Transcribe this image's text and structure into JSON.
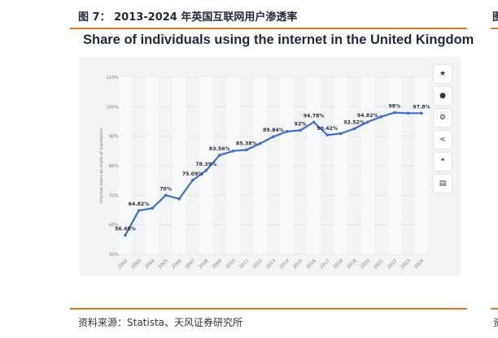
{
  "figure": {
    "label": "图 7： 2013-2024 年英国互联网用户渗透率",
    "source": "资料来源：Statista、天风证券研究所",
    "right_fragment_top": "图",
    "right_fragment_bottom": "资"
  },
  "toolbar": {
    "icons": [
      "star-icon",
      "bell-icon",
      "gear-icon",
      "share-icon",
      "quote-icon",
      "print-icon"
    ],
    "glyphs": [
      "★",
      "●",
      "⚙",
      "<",
      "❝",
      "▤"
    ]
  },
  "chart_data": {
    "type": "line",
    "title": "Share of individuals using the internet in the United Kingdom",
    "ylabel": "Internet users as share of population",
    "xlabel": "",
    "ylim": [
      50,
      110
    ],
    "yticks": [
      50,
      60,
      70,
      80,
      90,
      100,
      110
    ],
    "ytick_labels": [
      "50%",
      "60%",
      "70%",
      "80%",
      "90%",
      "100%",
      "110%"
    ],
    "grid": true,
    "color": "#3c6fd1",
    "categories": [
      "2002",
      "2003",
      "2004",
      "2005",
      "2006",
      "2007",
      "2008",
      "2009",
      "2010",
      "2011",
      "2012",
      "2013",
      "2014",
      "2015",
      "2016",
      "2017",
      "2018",
      "2019",
      "2020",
      "2021",
      "2022",
      "2023",
      "2024"
    ],
    "values": [
      56.48,
      64.82,
      65.6,
      70,
      68.8,
      75.09,
      78.39,
      83.56,
      85,
      85.38,
      87.5,
      89.84,
      91.6,
      92,
      94.78,
      90.42,
      90.9,
      92.52,
      94.82,
      96.6,
      98,
      97.8,
      97.8
    ],
    "data_labels": [
      "56.48%",
      "64.82%",
      "",
      "70%",
      "",
      "75.09%",
      "78.39%",
      "83.56%",
      "",
      "85.38%",
      "",
      "89.84%",
      "",
      "92%",
      "94.78%",
      "90.42%",
      "",
      "92.52%",
      "94.82%",
      "",
      "98%",
      "",
      "97.8%"
    ]
  }
}
